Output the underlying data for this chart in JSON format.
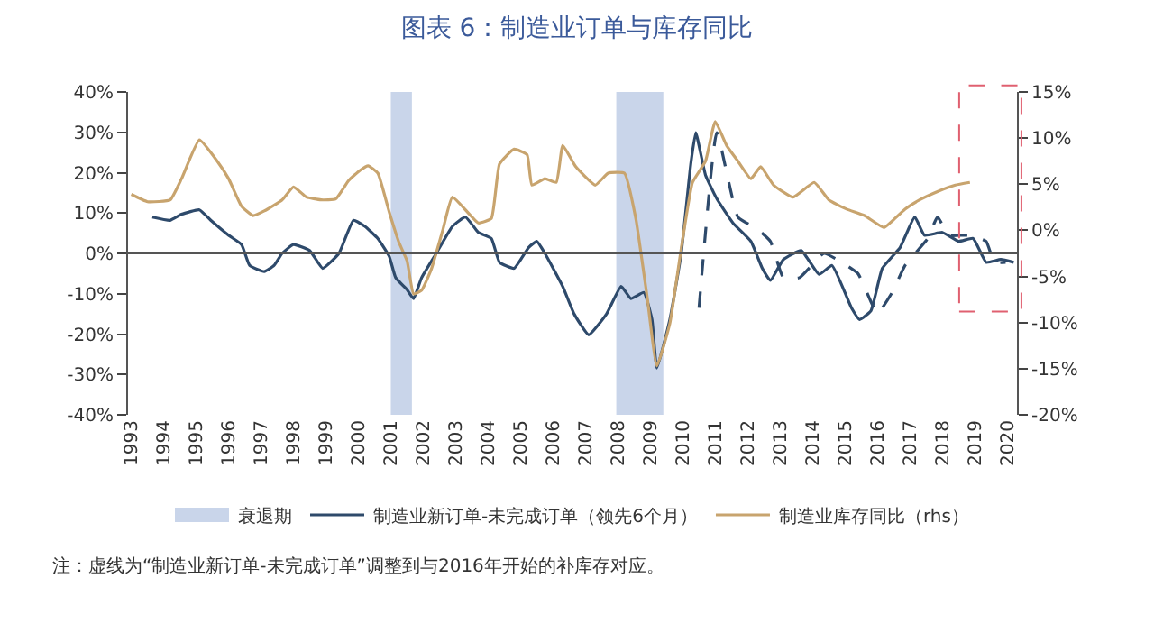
{
  "chart_data": {
    "type": "line",
    "title": "图表 6：制造业订单与库存同比",
    "xlim": [
      1992.9,
      2020.3
    ],
    "xticks": [
      1993,
      1994,
      1995,
      1996,
      1997,
      1998,
      1999,
      2000,
      2001,
      2002,
      2003,
      2004,
      2005,
      2006,
      2007,
      2008,
      2009,
      2010,
      2011,
      2012,
      2013,
      2014,
      2015,
      2016,
      2017,
      2018,
      2019,
      2020
    ],
    "ylim": [
      -40,
      40
    ],
    "yticks": [
      {
        "value": -40,
        "label": "-40%"
      },
      {
        "value": -30,
        "label": "-30%"
      },
      {
        "value": -20,
        "label": "-20%"
      },
      {
        "value": -10,
        "label": "-10%"
      },
      {
        "value": 0,
        "label": "0%"
      },
      {
        "value": 10,
        "label": "10%"
      },
      {
        "value": 20,
        "label": "20%"
      },
      {
        "value": 30,
        "label": "30%"
      },
      {
        "value": 40,
        "label": "40%"
      }
    ],
    "y2lim": [
      -20,
      15
    ],
    "y2ticks": [
      {
        "value": -20,
        "label": "-20%"
      },
      {
        "value": -15,
        "label": "-15%"
      },
      {
        "value": -10,
        "label": "-10%"
      },
      {
        "value": -5,
        "label": "-5%"
      },
      {
        "value": 0,
        "label": "0%"
      },
      {
        "value": 5,
        "label": "5%"
      },
      {
        "value": 10,
        "label": "10%"
      },
      {
        "value": 15,
        "label": "15%"
      }
    ],
    "series": [
      {
        "name": "制造业新订单-未完成订单（领先6个月）",
        "color": "#2e4a6b",
        "line_style": "solid",
        "x": [
          1993.65,
          1994.2,
          1994.55,
          1995.1,
          1995.45,
          1996.0,
          1996.4,
          1996.65,
          1997.1,
          1997.4,
          1997.65,
          1998.0,
          1998.5,
          1998.9,
          1999.4,
          1999.85,
          2000.2,
          2000.6,
          2000.95,
          2001.15,
          2001.5,
          2001.7,
          2001.95,
          2002.4,
          2002.9,
          2003.3,
          2003.7,
          2004.1,
          2004.35,
          2004.8,
          2005.25,
          2005.5,
          2005.75,
          2006.3,
          2006.65,
          2007.1,
          2007.65,
          2008.1,
          2008.4,
          2008.8,
          2009.05,
          2009.2,
          2009.6,
          2009.95,
          2010.25,
          2010.4,
          2010.7,
          2011.05,
          2011.55,
          2012.1,
          2012.45,
          2012.7,
          2013.1,
          2013.65,
          2014.2,
          2014.6,
          2015.2,
          2015.45,
          2015.8,
          2016.15,
          2016.7,
          2017.15,
          2017.45,
          2018.0,
          2018.5,
          2018.95,
          2019.35,
          2019.8,
          2020.2
        ],
        "values": [
          9.0,
          8.2,
          9.7,
          10.8,
          8.2,
          4.5,
          2.2,
          -3.0,
          -4.5,
          -3.0,
          0,
          2.2,
          0.7,
          -3.7,
          0,
          8.2,
          6.7,
          3.7,
          -0.7,
          -6.0,
          -9.0,
          -11.2,
          -6.0,
          0,
          6.7,
          9.0,
          5.2,
          3.7,
          -2.2,
          -3.7,
          1.5,
          3.0,
          0,
          -8.2,
          -15.0,
          -20.2,
          -15.0,
          -8.2,
          -11.2,
          -9.7,
          -16.4,
          -28.4,
          -16.4,
          0,
          22.4,
          29.9,
          19.4,
          13.5,
          7.5,
          3.0,
          -3.7,
          -6.7,
          -1.5,
          0.7,
          -5.2,
          -3.0,
          -13.5,
          -16.4,
          -14.2,
          -3.7,
          1.5,
          9.0,
          4.5,
          5.2,
          3.0,
          3.7,
          -2.2,
          -1.5,
          -2.2
        ]
      },
      {
        "color": "#2e4a6b",
        "line_style": "dashed",
        "x": [
          2010.5,
          2011.05,
          2011.7,
          2012.3,
          2012.7,
          2013.1,
          2013.6,
          2014.35,
          2014.9,
          2015.4,
          2015.8,
          2016.0,
          2016.45,
          2016.85,
          2017.55,
          2017.85,
          2018.2,
          2018.8,
          2019.35,
          2019.6,
          2019.95
        ],
        "values": [
          -13.5,
          29.9,
          9.0,
          6.0,
          3.0,
          -6.0,
          -6.0,
          0,
          -2.2,
          -5.0,
          -12.0,
          -15.0,
          -9.7,
          -3.0,
          3.7,
          9.0,
          4.5,
          4.5,
          3.0,
          -2.2,
          -2.2
        ]
      },
      {
        "name": "制造业库存同比（rhs）",
        "color": "#c8a46e",
        "line_style": "solid",
        "axis": "y2",
        "x": [
          1993.0,
          1993.5,
          1994.2,
          1994.55,
          1995.1,
          1995.65,
          1996.0,
          1996.4,
          1996.75,
          1997.1,
          1997.65,
          1998.0,
          1998.4,
          1998.85,
          1999.3,
          1999.7,
          2000.05,
          2000.3,
          2000.6,
          2000.95,
          2001.25,
          2001.5,
          2001.7,
          2001.95,
          2002.25,
          2002.6,
          2002.9,
          2003.7,
          2004.1,
          2004.35,
          2004.8,
          2005.2,
          2005.35,
          2005.75,
          2006.1,
          2006.3,
          2006.7,
          2007.3,
          2007.7,
          2008.2,
          2008.55,
          2008.9,
          2009.2,
          2009.6,
          2009.95,
          2010.3,
          2010.7,
          2011.0,
          2011.35,
          2011.7,
          2012.1,
          2012.4,
          2012.8,
          2013.4,
          2014.05,
          2014.5,
          2015.05,
          2015.6,
          2016.2,
          2016.45,
          2016.85,
          2017.3,
          2017.85,
          2018.4,
          2018.85
        ],
        "values": [
          3.9,
          3.1,
          3.3,
          5.6,
          9.8,
          7.5,
          5.6,
          2.6,
          1.6,
          2.1,
          3.3,
          4.7,
          3.6,
          3.3,
          3.4,
          5.4,
          6.5,
          7.0,
          6.2,
          2.0,
          -1.3,
          -3.3,
          -6.9,
          -6.5,
          -4.2,
          0,
          3.6,
          0.8,
          1.3,
          7.2,
          8.8,
          8.2,
          4.9,
          5.6,
          5.2,
          9.2,
          6.9,
          4.9,
          6.2,
          6.2,
          1.3,
          -7.2,
          -14.7,
          -10.1,
          -2.0,
          5.2,
          7.5,
          11.8,
          9.2,
          7.5,
          5.6,
          6.9,
          4.9,
          3.6,
          5.2,
          3.3,
          2.3,
          1.6,
          0.3,
          1.0,
          2.3,
          3.3,
          4.2,
          4.9,
          5.2
        ]
      }
    ],
    "bands": [
      {
        "axis": "x",
        "from": 2001.0,
        "to": 2001.65,
        "label": "衰退期",
        "color": "#c9d5ea"
      },
      {
        "axis": "x",
        "from": 2007.95,
        "to": 2009.4,
        "label": null,
        "color": "#c9d5ea"
      }
    ],
    "ref_lines": [
      {
        "axis": "y",
        "value": 0,
        "color": "#555555"
      }
    ],
    "annotations": [
      "注：虚线为“制造业新订单-未完成订单”调整到与2016年开始的补库存对应。"
    ],
    "legend": "bottom",
    "grid": false,
    "marker": "none"
  }
}
